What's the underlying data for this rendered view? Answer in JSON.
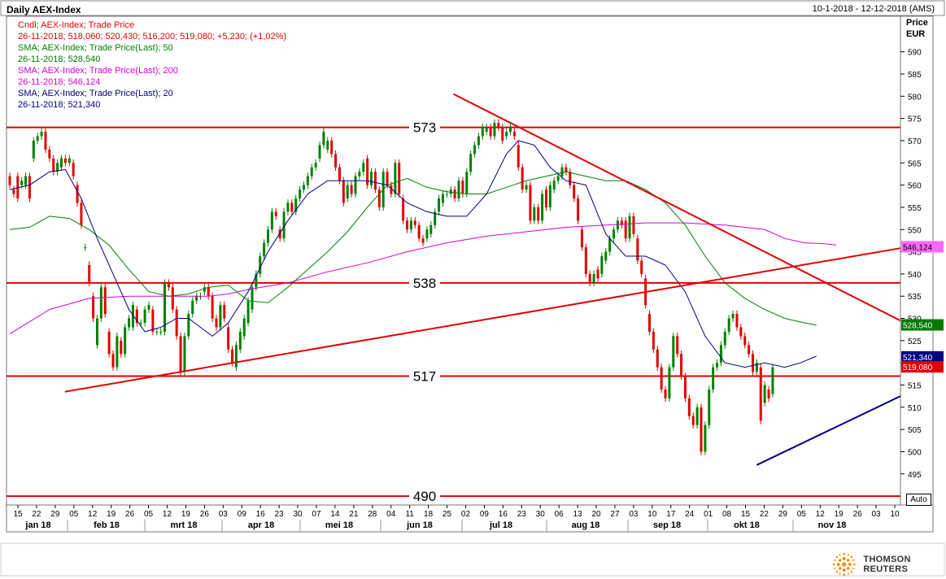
{
  "header": {
    "title": "Daily AEX-Index",
    "date_range": "10-1-2018 - 12-12-2018 (AMS)"
  },
  "legend": [
    {
      "text": "Cndl; AEX-Index; Trade Price",
      "color": "#e00000"
    },
    {
      "text": "26-11-2018; 518,060; 520,430; 516,200; 519,080; +5,230; (+1,02%)",
      "color": "#e00000"
    },
    {
      "text": "SMA; AEX-Index; Trade Price(Last);  50",
      "color": "#008000"
    },
    {
      "text": "26-11-2018; 528,540",
      "color": "#008000"
    },
    {
      "text": "SMA; AEX-Index; Trade Price(Last);  200",
      "color": "#d400d4"
    },
    {
      "text": "26-11-2018; 546,124",
      "color": "#d400d4"
    },
    {
      "text": "SMA; AEX-Index; Trade Price(Last);  20",
      "color": "#000080"
    },
    {
      "text": "26-11-2018; 521,340",
      "color": "#000080"
    }
  ],
  "axis": {
    "title_line1": "Price",
    "title_line2": "EUR",
    "auto_label": "Auto"
  },
  "branding": {
    "company": "THOMSON REUTERS"
  },
  "chart_data": {
    "type": "candlestick",
    "ylim": [
      488,
      598
    ],
    "y_ticks": [
      495,
      500,
      505,
      510,
      515,
      520,
      525,
      530,
      535,
      540,
      545,
      550,
      555,
      560,
      565,
      570,
      575,
      580,
      585,
      590
    ],
    "x_day_labels": [
      "15",
      "22",
      "29",
      "05",
      "12",
      "19",
      "26",
      "05",
      "12",
      "19",
      "26",
      "03",
      "09",
      "16",
      "23",
      "30",
      "07",
      "14",
      "21",
      "28",
      "04",
      "11",
      "18",
      "25",
      "02",
      "09",
      "16",
      "23",
      "30",
      "06",
      "13",
      "20",
      "27",
      "03",
      "10",
      "17",
      "24",
      "01",
      "08",
      "15",
      "22",
      "29",
      "05",
      "12",
      "19",
      "26",
      "03",
      "10"
    ],
    "x_month_labels": [
      "jan 18",
      "feb 18",
      "mrt 18",
      "apr 18",
      "mei 18",
      "jun 18",
      "jul 18",
      "aug 18",
      "sep 18",
      "okt 18",
      "nov 18"
    ],
    "horizontal_levels": [
      {
        "value": 573,
        "label": "573"
      },
      {
        "value": 538,
        "label": "538"
      },
      {
        "value": 517,
        "label": "517"
      },
      {
        "value": 490,
        "label": "490"
      }
    ],
    "trend_lines": [
      {
        "name": "rising-support",
        "color": "#e00000",
        "from": [
          "2018-02-01",
          513.5
        ],
        "to": [
          "2018-12-12",
          545.8
        ]
      },
      {
        "name": "falling-resistance",
        "color": "#e00000",
        "from": [
          "2018-06-27",
          580.5
        ],
        "to": [
          "2018-12-12",
          529.5
        ]
      },
      {
        "name": "autumn-support",
        "color": "#000080",
        "from": [
          "2018-10-19",
          497.0
        ],
        "to": [
          "2018-12-12",
          512.5
        ]
      }
    ],
    "value_badges": [
      {
        "value": 546.124,
        "label": "546,124",
        "bg": "#ff66ff",
        "fg": "#000000"
      },
      {
        "value": 528.54,
        "label": "528,540",
        "bg": "#007a00",
        "fg": "#ffffff"
      },
      {
        "value": 521.34,
        "label": "521,340",
        "bg": "#000080",
        "fg": "#ffffff"
      },
      {
        "value": 519.08,
        "label": "519,080",
        "bg": "#e00000",
        "fg": "#ffffff"
      }
    ],
    "colors": {
      "up": "#008000",
      "down": "#e00000",
      "sma20": "#000080",
      "sma50": "#008000",
      "sma200": "#d400d4"
    },
    "sma200": [
      [
        0,
        526.5
      ],
      [
        10,
        532
      ],
      [
        20,
        534.5
      ],
      [
        30,
        535
      ],
      [
        40,
        535
      ],
      [
        50,
        535
      ],
      [
        55,
        535.5
      ],
      [
        60,
        536.5
      ],
      [
        70,
        538
      ],
      [
        80,
        540.5
      ],
      [
        90,
        542.5
      ],
      [
        100,
        545
      ],
      [
        110,
        547
      ],
      [
        120,
        548.5
      ],
      [
        130,
        549.5
      ],
      [
        140,
        550.5
      ],
      [
        150,
        551
      ],
      [
        160,
        551.5
      ],
      [
        165,
        551.5
      ],
      [
        170,
        551.5
      ],
      [
        180,
        551
      ],
      [
        190,
        550
      ],
      [
        195,
        548
      ],
      [
        200,
        547
      ],
      [
        205,
        546.8
      ],
      [
        208,
        546.5
      ]
    ],
    "sma50": [
      [
        0,
        550
      ],
      [
        5,
        550.5
      ],
      [
        10,
        553
      ],
      [
        15,
        552.5
      ],
      [
        20,
        550
      ],
      [
        25,
        546.5
      ],
      [
        30,
        541
      ],
      [
        35,
        536
      ],
      [
        40,
        535
      ],
      [
        45,
        535.5
      ],
      [
        50,
        537
      ],
      [
        55,
        537.5
      ],
      [
        60,
        534
      ],
      [
        65,
        533.5
      ],
      [
        70,
        537
      ],
      [
        75,
        541
      ],
      [
        80,
        545
      ],
      [
        85,
        549.5
      ],
      [
        90,
        555
      ],
      [
        95,
        560
      ],
      [
        100,
        561.5
      ],
      [
        105,
        559.5
      ],
      [
        110,
        558.5
      ],
      [
        115,
        558
      ],
      [
        120,
        558
      ],
      [
        125,
        559.5
      ],
      [
        130,
        561
      ],
      [
        135,
        562
      ],
      [
        140,
        563
      ],
      [
        145,
        562
      ],
      [
        150,
        561
      ],
      [
        155,
        561
      ],
      [
        160,
        559
      ],
      [
        165,
        556
      ],
      [
        170,
        551
      ],
      [
        175,
        544
      ],
      [
        180,
        538
      ],
      [
        185,
        534.5
      ],
      [
        190,
        532
      ],
      [
        195,
        530
      ],
      [
        200,
        529
      ],
      [
        203,
        528.5
      ]
    ],
    "sma20": [
      [
        0,
        559
      ],
      [
        5,
        560
      ],
      [
        10,
        563
      ],
      [
        14,
        563.5
      ],
      [
        18,
        557
      ],
      [
        22,
        548
      ],
      [
        26,
        540
      ],
      [
        30,
        532
      ],
      [
        34,
        527
      ],
      [
        38,
        528
      ],
      [
        42,
        530
      ],
      [
        45,
        530
      ],
      [
        48,
        528
      ],
      [
        51,
        526
      ],
      [
        55,
        529
      ],
      [
        60,
        536
      ],
      [
        65,
        545
      ],
      [
        70,
        552
      ],
      [
        75,
        558
      ],
      [
        80,
        561
      ],
      [
        85,
        561
      ],
      [
        90,
        561
      ],
      [
        95,
        560
      ],
      [
        100,
        556
      ],
      [
        105,
        554
      ],
      [
        110,
        553
      ],
      [
        115,
        553
      ],
      [
        120,
        558
      ],
      [
        125,
        567
      ],
      [
        128,
        570
      ],
      [
        132,
        569
      ],
      [
        136,
        564
      ],
      [
        140,
        561
      ],
      [
        145,
        560
      ],
      [
        150,
        549
      ],
      [
        155,
        544
      ],
      [
        160,
        544
      ],
      [
        165,
        542
      ],
      [
        170,
        536
      ],
      [
        175,
        526
      ],
      [
        180,
        520
      ],
      [
        185,
        519
      ],
      [
        190,
        520
      ],
      [
        195,
        519
      ],
      [
        199,
        520
      ],
      [
        203,
        521.5
      ]
    ],
    "candles": [
      [
        562,
        560
      ],
      [
        559,
        558
      ],
      [
        562,
        557
      ],
      [
        560,
        561
      ],
      [
        560,
        562
      ],
      [
        562,
        557
      ],
      [
        566,
        570
      ],
      [
        570,
        571
      ],
      [
        571,
        572
      ],
      [
        572,
        568
      ],
      [
        568,
        566
      ],
      [
        566,
        563
      ],
      [
        563,
        565
      ],
      [
        564,
        566
      ],
      [
        566,
        565
      ],
      [
        565,
        566
      ],
      [
        565,
        562
      ],
      [
        560,
        556
      ],
      [
        556,
        551
      ],
      [
        546,
        546
      ],
      [
        542,
        538
      ],
      [
        535,
        530
      ],
      [
        524,
        530
      ],
      [
        530,
        537
      ],
      [
        537,
        531
      ],
      [
        527,
        522
      ],
      [
        522,
        519
      ],
      [
        519,
        526
      ],
      [
        525,
        522
      ],
      [
        522,
        528
      ],
      [
        528,
        530
      ],
      [
        528,
        533
      ],
      [
        532,
        529
      ],
      [
        529,
        529
      ],
      [
        529,
        532
      ],
      [
        532,
        533
      ],
      [
        532,
        527
      ],
      [
        527,
        527
      ],
      [
        527,
        527
      ],
      [
        527,
        538
      ],
      [
        538,
        537
      ],
      [
        537,
        532
      ],
      [
        532,
        526
      ],
      [
        526,
        518
      ],
      [
        518,
        526
      ],
      [
        526,
        531
      ],
      [
        531,
        534
      ],
      [
        534,
        535
      ],
      [
        535,
        535
      ],
      [
        536,
        537
      ],
      [
        537,
        535
      ],
      [
        535,
        530
      ],
      [
        530,
        528
      ],
      [
        528,
        533
      ],
      [
        533,
        530
      ],
      [
        528,
        523
      ],
      [
        523,
        520
      ],
      [
        519,
        524
      ],
      [
        523,
        527
      ],
      [
        526,
        530
      ],
      [
        529,
        534
      ],
      [
        532,
        537
      ],
      [
        537,
        540
      ],
      [
        540,
        544
      ],
      [
        544,
        547
      ],
      [
        547,
        550
      ],
      [
        550,
        554
      ],
      [
        554,
        553
      ],
      [
        550,
        548
      ],
      [
        548,
        554
      ],
      [
        554,
        556
      ],
      [
        556,
        554
      ],
      [
        554,
        557
      ],
      [
        557,
        559
      ],
      [
        559,
        560
      ],
      [
        560,
        562
      ],
      [
        562,
        564
      ],
      [
        564,
        565
      ],
      [
        566,
        569
      ],
      [
        569,
        572
      ],
      [
        568,
        570
      ],
      [
        570,
        567
      ],
      [
        567,
        564
      ],
      [
        564,
        561
      ],
      [
        561,
        556
      ],
      [
        557,
        560
      ],
      [
        560,
        558
      ],
      [
        558,
        562
      ],
      [
        562,
        563
      ],
      [
        563,
        565
      ],
      [
        566,
        560
      ],
      [
        560,
        563
      ],
      [
        563,
        559
      ],
      [
        559,
        555
      ],
      [
        555,
        563
      ],
      [
        563,
        560
      ],
      [
        560,
        558
      ],
      [
        558,
        565
      ],
      [
        565,
        558
      ],
      [
        557,
        552
      ],
      [
        552,
        550
      ],
      [
        550,
        552
      ],
      [
        552,
        551
      ],
      [
        551,
        548
      ],
      [
        548,
        547
      ],
      [
        548,
        550
      ],
      [
        549,
        551
      ],
      [
        551,
        554
      ],
      [
        554,
        557
      ],
      [
        556,
        558
      ],
      [
        558,
        558
      ],
      [
        558,
        559
      ],
      [
        559,
        557
      ],
      [
        557,
        561
      ],
      [
        561,
        558
      ],
      [
        558,
        563
      ],
      [
        563,
        567
      ],
      [
        567,
        569
      ],
      [
        569,
        571
      ],
      [
        571,
        573
      ],
      [
        572,
        573
      ],
      [
        573,
        571
      ],
      [
        571,
        574
      ],
      [
        574,
        573
      ],
      [
        573,
        570
      ],
      [
        571,
        572
      ],
      [
        572,
        573
      ],
      [
        572,
        571
      ],
      [
        569,
        564
      ],
      [
        564,
        559
      ],
      [
        559,
        560
      ],
      [
        560,
        552
      ],
      [
        552,
        555
      ],
      [
        555,
        552
      ],
      [
        552,
        558
      ],
      [
        559,
        555
      ],
      [
        555,
        560
      ],
      [
        559,
        561
      ],
      [
        561,
        562
      ],
      [
        562,
        564
      ],
      [
        564,
        563
      ],
      [
        563,
        560
      ],
      [
        560,
        557
      ],
      [
        557,
        552
      ],
      [
        550,
        546
      ],
      [
        546,
        540
      ],
      [
        540,
        538
      ],
      [
        538,
        540
      ],
      [
        541,
        539
      ],
      [
        540,
        544
      ],
      [
        543,
        545
      ],
      [
        545,
        548
      ],
      [
        548,
        550
      ],
      [
        550,
        552
      ],
      [
        552,
        551
      ],
      [
        552,
        548
      ],
      [
        548,
        553
      ],
      [
        553,
        549
      ],
      [
        548,
        543
      ],
      [
        543,
        540
      ],
      [
        539,
        533
      ],
      [
        531,
        527
      ],
      [
        527,
        523
      ],
      [
        523,
        519
      ],
      [
        519,
        514
      ],
      [
        514,
        512
      ],
      [
        512,
        519
      ],
      [
        519,
        526
      ],
      [
        526,
        522
      ],
      [
        522,
        517
      ],
      [
        517,
        512
      ],
      [
        512,
        508
      ],
      [
        508,
        506
      ],
      [
        506,
        510
      ],
      [
        510,
        500
      ],
      [
        500,
        506
      ],
      [
        506,
        514
      ],
      [
        514,
        519
      ],
      [
        519,
        520
      ],
      [
        520,
        524
      ],
      [
        524,
        527
      ],
      [
        527,
        530
      ],
      [
        530,
        531
      ],
      [
        531,
        528
      ],
      [
        528,
        526
      ],
      [
        526,
        524
      ],
      [
        524,
        522
      ],
      [
        522,
        518
      ],
      [
        518,
        520
      ],
      [
        519,
        507
      ],
      [
        511,
        515
      ],
      [
        514,
        512
      ],
      [
        513,
        519
      ]
    ]
  }
}
